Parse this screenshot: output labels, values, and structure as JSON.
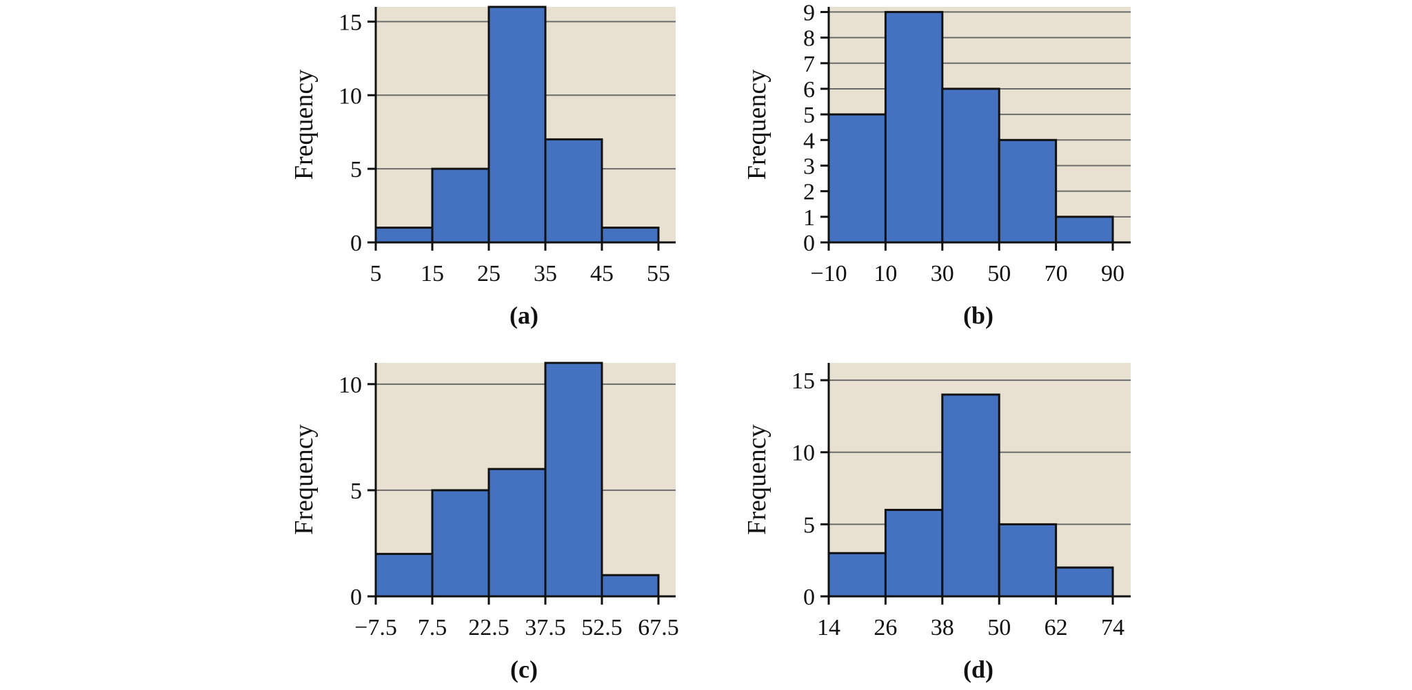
{
  "colors": {
    "plot_background": "#e8e0d0",
    "bar_fill": "#4472c0",
    "bar_stroke": "#111111",
    "grid": "#6b6b6b",
    "axis": "#111111"
  },
  "chart_data": [
    {
      "type": "bar",
      "panel_label": "(a)",
      "ylabel": "Frequency",
      "bin_edges": [
        5,
        15,
        25,
        35,
        45,
        55
      ],
      "x_tick_labels": [
        "5",
        "15",
        "25",
        "35",
        "45",
        "55"
      ],
      "values": [
        1,
        5,
        16,
        7,
        1
      ],
      "ylim": [
        0,
        16
      ],
      "y_ticks": [
        0,
        5,
        10,
        15
      ],
      "y_tick_labels": [
        "0",
        "5",
        "10",
        "15"
      ],
      "grid": true
    },
    {
      "type": "bar",
      "panel_label": "(b)",
      "ylabel": "Frequency",
      "bin_edges": [
        -10,
        10,
        30,
        50,
        70,
        90
      ],
      "x_tick_labels": [
        "−10",
        "10",
        "30",
        "50",
        "70",
        "90"
      ],
      "values": [
        5,
        9,
        6,
        4,
        1
      ],
      "ylim": [
        0,
        9.2
      ],
      "y_ticks": [
        0,
        1,
        2,
        3,
        4,
        5,
        6,
        7,
        8,
        9
      ],
      "y_tick_labels": [
        "0",
        "1",
        "2",
        "3",
        "4",
        "5",
        "6",
        "7",
        "8",
        "9"
      ],
      "grid": true
    },
    {
      "type": "bar",
      "panel_label": "(c)",
      "ylabel": "Frequency",
      "bin_edges": [
        -7.5,
        7.5,
        22.5,
        37.5,
        52.5,
        67.5
      ],
      "x_tick_labels": [
        "−7.5",
        "7.5",
        "22.5",
        "37.5",
        "52.5",
        "67.5"
      ],
      "values": [
        2,
        5,
        6,
        11,
        1
      ],
      "ylim": [
        0,
        11
      ],
      "y_ticks": [
        0,
        5,
        10
      ],
      "y_tick_labels": [
        "0",
        "5",
        "10"
      ],
      "grid": true
    },
    {
      "type": "bar",
      "panel_label": "(d)",
      "ylabel": "Frequency",
      "bin_edges": [
        14,
        26,
        38,
        50,
        62,
        74
      ],
      "x_tick_labels": [
        "14",
        "26",
        "38",
        "50",
        "62",
        "74"
      ],
      "values": [
        3,
        6,
        14,
        5,
        2
      ],
      "ylim": [
        0,
        16.2
      ],
      "y_ticks": [
        0,
        5,
        10,
        15
      ],
      "y_tick_labels": [
        "0",
        "5",
        "10",
        "15"
      ],
      "grid": true
    }
  ]
}
